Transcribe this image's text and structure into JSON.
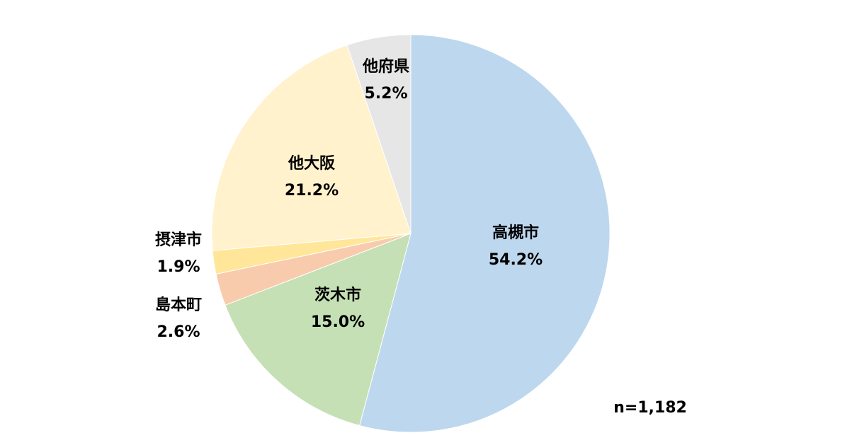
{
  "chart_data": {
    "type": "pie",
    "categories": [
      "高槻市",
      "茨木市",
      "島本町",
      "摂津市",
      "他大阪",
      "他府県"
    ],
    "values": [
      54.2,
      15.0,
      2.6,
      1.9,
      21.2,
      5.2
    ],
    "value_labels": [
      "54.2%",
      "15.0%",
      "2.6%",
      "1.9%",
      "21.2%",
      "5.2%"
    ],
    "colors": [
      "#bdd7ee",
      "#c5e0b4",
      "#f8cbad",
      "#ffe699",
      "#fff2cc",
      "#e7e6e6"
    ],
    "note": "n=1,182"
  }
}
